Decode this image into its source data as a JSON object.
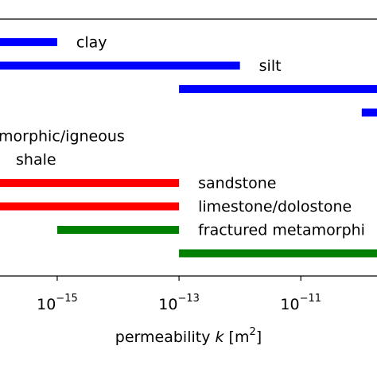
{
  "chart_data": {
    "type": "range_bar",
    "log_x": true,
    "xlim": [
      1.15e-16,
      1.78e-10
    ],
    "xticks": [
      {
        "value": 1e-15,
        "label": "10",
        "exponent": "−15"
      },
      {
        "value": 1e-13,
        "label": "10",
        "exponent": "−13"
      },
      {
        "value": 1e-11,
        "label": "10",
        "exponent": "−11"
      }
    ],
    "xlabel": [
      "permeability ",
      "k",
      " [m",
      "2",
      "]"
    ],
    "bars": [
      {
        "label": "clay",
        "color": "#0000ff",
        "start": null,
        "end": 1e-15
      },
      {
        "label": "silt",
        "color": "#0000ff",
        "start": null,
        "end": 1e-12
      },
      {
        "label": null,
        "color": "#0000ff",
        "start": 1e-13,
        "end": null
      },
      {
        "label": null,
        "color": "#0000ff",
        "start": 1e-10,
        "end": null
      },
      {
        "label": "morphic/igneous",
        "color": null,
        "start": null,
        "end": null
      },
      {
        "label": "shale",
        "color": null,
        "start": null,
        "end": null
      },
      {
        "label": "sandstone",
        "color": "#ff0000",
        "start": null,
        "end": 1e-13
      },
      {
        "label": "limestone/dolostone",
        "color": "#ff0000",
        "start": null,
        "end": 1e-13
      },
      {
        "label": "fractured metamorphi",
        "color": "#008000",
        "start": 1e-15,
        "end": 1e-13
      },
      {
        "label": null,
        "color": "#008000",
        "start": 1e-13,
        "end": null
      }
    ]
  }
}
